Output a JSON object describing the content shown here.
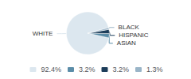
{
  "chart_data": {
    "type": "pie",
    "categories": [
      "WHITE",
      "ASIAN",
      "HISPANIC",
      "BLACK"
    ],
    "values": [
      92.4,
      3.2,
      3.2,
      1.3
    ],
    "value_labels": [
      "92.4%",
      "3.2%",
      "3.2%",
      "1.3%"
    ],
    "colors": [
      "#dce7ef",
      "#5b8da8",
      "#1c3d5a",
      "#9ab5c8"
    ],
    "legend": "bottom"
  }
}
